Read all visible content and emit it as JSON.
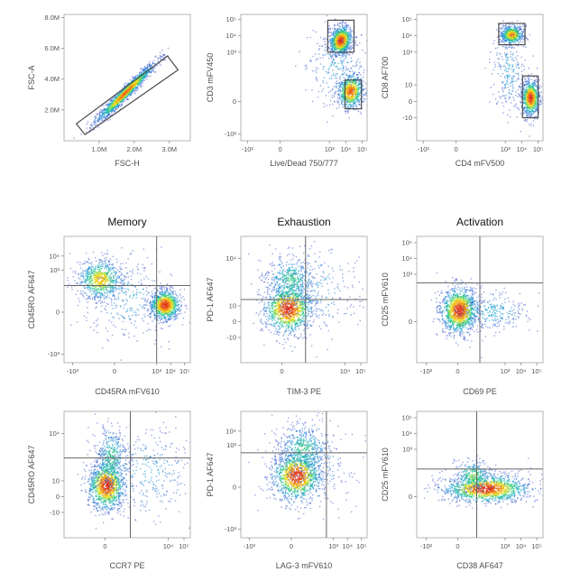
{
  "chart_data": {
    "type": "scatter",
    "subtype": "flow-cytometry-density-plots",
    "column_titles": [
      "Memory",
      "Exhaustion",
      "Activation"
    ],
    "colormap": [
      "#3f49c9",
      "#1fa2d8",
      "#2fd07d",
      "#f2e11b",
      "#f08a1c",
      "#e0281d"
    ],
    "plots": [
      {
        "id": "fsc",
        "scale": "linear",
        "xlabel": "FSC-H",
        "ylabel": "FSC-A",
        "xlim": [
          0,
          3.6
        ],
        "ylim": [
          0,
          8.2
        ],
        "xticks": [
          {
            "v": 1,
            "label": "1.0M"
          },
          {
            "v": 2,
            "label": "2.0M"
          },
          {
            "v": 3,
            "label": "3.0M"
          }
        ],
        "yticks": [
          {
            "v": 2,
            "label": "2.0M"
          },
          {
            "v": 4,
            "label": "4.0M"
          },
          {
            "v": 6,
            "label": "6.0M"
          },
          {
            "v": 8,
            "label": "8.0M"
          }
        ],
        "clusters": [
          {
            "cx": 1.75,
            "cy": 3.1,
            "sx": 0.42,
            "sy": 0.95,
            "rho": 0.97,
            "n": 1400,
            "peak": 0.9
          }
        ],
        "gate_polygon": [
          [
            0.35,
            1.1
          ],
          [
            0.6,
            0.4
          ],
          [
            3.25,
            4.6
          ],
          [
            2.95,
            5.5
          ]
        ]
      },
      {
        "id": "cd3",
        "scale": "log",
        "xlabel": "Live/Dead 750/777",
        "ylabel": "CD3 mFV450",
        "xlim": [
          -2.4,
          5.3
        ],
        "ylim": [
          -2.4,
          5.3
        ],
        "xticks": [
          {
            "v": -2,
            "label": "-10²"
          },
          {
            "v": 0,
            "label": "0"
          },
          {
            "v": 3,
            "label": "10³"
          },
          {
            "v": 4,
            "label": "10⁴"
          },
          {
            "v": 5,
            "label": "10⁵"
          }
        ],
        "yticks": [
          {
            "v": -2,
            "label": "-10²"
          },
          {
            "v": 0,
            "label": "0"
          },
          {
            "v": 3,
            "label": "10³"
          },
          {
            "v": 4,
            "label": "10⁴"
          },
          {
            "v": 5,
            "label": "10⁵"
          }
        ],
        "clusters": [
          {
            "cx": 3.7,
            "cy": 3.7,
            "sx": 0.35,
            "sy": 0.45,
            "rho": 0.2,
            "n": 900,
            "peak": 1.0
          },
          {
            "cx": 4.3,
            "cy": 0.6,
            "sx": 0.4,
            "sy": 0.55,
            "rho": 0.1,
            "n": 650,
            "peak": 0.9
          },
          {
            "cx": 3.5,
            "cy": 2.0,
            "sx": 1.0,
            "sy": 1.2,
            "rho": 0.0,
            "n": 250,
            "peak": 0.2
          }
        ],
        "gate_rects": [
          [
            2.9,
            3.0,
            4.5,
            4.95
          ],
          [
            3.95,
            -0.45,
            4.95,
            1.3
          ]
        ]
      },
      {
        "id": "cd4",
        "scale": "log",
        "xlabel": "CD4 mFV500",
        "ylabel": "CD8 AF700",
        "xlim": [
          -2.4,
          5.3
        ],
        "ylim": [
          -2.4,
          5.3
        ],
        "xticks": [
          {
            "v": -2,
            "label": "-10²"
          },
          {
            "v": 0,
            "label": "0"
          },
          {
            "v": 3,
            "label": "10³"
          },
          {
            "v": 4,
            "label": "10⁴"
          },
          {
            "v": 5,
            "label": "10⁵"
          }
        ],
        "yticks": [
          {
            "v": -1,
            "label": "-10"
          },
          {
            "v": 0,
            "label": "0"
          },
          {
            "v": 1,
            "label": "10"
          },
          {
            "v": 3,
            "label": "10³"
          },
          {
            "v": 4,
            "label": "10⁴"
          },
          {
            "v": 5,
            "label": "10⁵"
          }
        ],
        "clusters": [
          {
            "cx": 3.4,
            "cy": 4.05,
            "sx": 0.35,
            "sy": 0.3,
            "rho": 0.0,
            "n": 550,
            "peak": 0.8
          },
          {
            "cx": 4.55,
            "cy": 0.2,
            "sx": 0.28,
            "sy": 0.55,
            "rho": 0.0,
            "n": 700,
            "peak": 1.0
          },
          {
            "cx": 3.2,
            "cy": 1.8,
            "sx": 0.5,
            "sy": 1.3,
            "rho": 0.0,
            "n": 250,
            "peak": 0.2
          }
        ],
        "gate_rects": [
          [
            2.6,
            3.45,
            4.2,
            4.75
          ],
          [
            4.05,
            -1.0,
            5.0,
            1.55
          ]
        ]
      },
      {
        "id": "mem1",
        "scale": "log",
        "xlabel": "CD45RA mFV610",
        "ylabel": "CD45RO AF647",
        "title": "Memory",
        "xlim": [
          -3.6,
          5.4
        ],
        "ylim": [
          -3.6,
          5.4
        ],
        "xticks": [
          {
            "v": -3,
            "label": "-10³"
          },
          {
            "v": 0,
            "label": "0"
          },
          {
            "v": 3,
            "label": "10³"
          },
          {
            "v": 4,
            "label": "10⁴"
          },
          {
            "v": 5,
            "label": "10⁵"
          }
        ],
        "yticks": [
          {
            "v": -3,
            "label": "-10³"
          },
          {
            "v": 0,
            "label": "0"
          },
          {
            "v": 3,
            "label": "10³"
          },
          {
            "v": 4,
            "label": "10⁴"
          }
        ],
        "clusters": [
          {
            "cx": -1.0,
            "cy": 2.3,
            "sx": 0.8,
            "sy": 0.75,
            "rho": 0.0,
            "n": 650,
            "peak": 0.7
          },
          {
            "cx": 3.6,
            "cy": 0.5,
            "sx": 0.55,
            "sy": 0.55,
            "rho": 0.0,
            "n": 850,
            "peak": 1.0
          },
          {
            "cx": 1.0,
            "cy": 1.0,
            "sx": 1.6,
            "sy": 1.5,
            "rho": 0.0,
            "n": 300,
            "peak": 0.2
          }
        ],
        "quadrant": {
          "x": 3.0,
          "y": 1.9
        }
      },
      {
        "id": "exh1",
        "scale": "log",
        "xlabel": "TIM-3 PE",
        "ylabel": "PD-1 AF647",
        "title": "Exhaustion",
        "xlim": [
          -2.6,
          5.4
        ],
        "ylim": [
          -2.6,
          5.4
        ],
        "xticks": [
          {
            "v": 0,
            "label": "0"
          },
          {
            "v": 4,
            "label": "10⁴"
          },
          {
            "v": 5,
            "label": "10⁵"
          }
        ],
        "yticks": [
          {
            "v": -1,
            "label": "-10"
          },
          {
            "v": 0,
            "label": "0"
          },
          {
            "v": 1,
            "label": "10"
          },
          {
            "v": 4,
            "label": "10⁴"
          }
        ],
        "clusters": [
          {
            "cx": 0.4,
            "cy": 0.8,
            "sx": 0.8,
            "sy": 0.8,
            "rho": 0.0,
            "n": 1000,
            "peak": 1.0
          },
          {
            "cx": 0.6,
            "cy": 2.6,
            "sx": 0.8,
            "sy": 0.8,
            "rho": 0.0,
            "n": 450,
            "peak": 0.4
          },
          {
            "cx": 2.0,
            "cy": 2.0,
            "sx": 1.5,
            "sy": 1.5,
            "rho": 0.0,
            "n": 250,
            "peak": 0.2
          }
        ],
        "quadrant": {
          "x": 1.5,
          "y": 1.4
        }
      },
      {
        "id": "act1",
        "scale": "log",
        "xlabel": "CD69 PE",
        "ylabel": "CD25 mFV610",
        "title": "Activation",
        "xlim": [
          -2.6,
          5.4
        ],
        "ylim": [
          -2.6,
          5.4
        ],
        "xticks": [
          {
            "v": -2,
            "label": "-10²"
          },
          {
            "v": 0,
            "label": "0"
          },
          {
            "v": 3,
            "label": "10³"
          },
          {
            "v": 4,
            "label": "10⁴"
          },
          {
            "v": 5,
            "label": "10⁵"
          }
        ],
        "yticks": [
          {
            "v": 0,
            "label": "0"
          },
          {
            "v": 3,
            "label": "10³"
          },
          {
            "v": 4,
            "label": "10⁴"
          },
          {
            "v": 5,
            "label": "10⁵"
          }
        ],
        "clusters": [
          {
            "cx": 0.1,
            "cy": 0.7,
            "sx": 0.6,
            "sy": 0.75,
            "rho": 0.0,
            "n": 1100,
            "peak": 1.0
          },
          {
            "cx": 2.2,
            "cy": 0.6,
            "sx": 1.2,
            "sy": 0.6,
            "rho": 0.0,
            "n": 300,
            "peak": 0.25
          }
        ],
        "quadrant": {
          "x": 1.4,
          "y": 2.45
        }
      },
      {
        "id": "mem2",
        "scale": "log",
        "xlabel": "CCR7 PE",
        "ylabel": "CD45RO AF647",
        "xlim": [
          -2.6,
          5.4
        ],
        "ylim": [
          -2.6,
          5.4
        ],
        "xticks": [
          {
            "v": 0,
            "label": "0"
          },
          {
            "v": 4,
            "label": "10⁴"
          },
          {
            "v": 5,
            "label": "10⁵"
          }
        ],
        "yticks": [
          {
            "v": -1,
            "label": "-10"
          },
          {
            "v": 0,
            "label": "0"
          },
          {
            "v": 1,
            "label": "10"
          },
          {
            "v": 4,
            "label": "10⁴"
          }
        ],
        "clusters": [
          {
            "cx": 0.1,
            "cy": 0.7,
            "sx": 0.6,
            "sy": 0.8,
            "rho": 0.0,
            "n": 1000,
            "peak": 1.0
          },
          {
            "cx": 0.4,
            "cy": 2.4,
            "sx": 0.5,
            "sy": 1.0,
            "rho": 0.0,
            "n": 400,
            "peak": 0.4
          },
          {
            "cx": 2.5,
            "cy": 1.6,
            "sx": 1.7,
            "sy": 1.4,
            "rho": 0.0,
            "n": 350,
            "peak": 0.2
          }
        ],
        "quadrant": {
          "x": 1.6,
          "y": 2.45
        }
      },
      {
        "id": "exh2",
        "scale": "log",
        "xlabel": "LAG-3 mFV610",
        "ylabel": "PD-1 AF647",
        "xlim": [
          -3.6,
          5.4
        ],
        "ylim": [
          -3.6,
          5.4
        ],
        "xticks": [
          {
            "v": -3,
            "label": "-10³"
          },
          {
            "v": 0,
            "label": "0"
          },
          {
            "v": 3,
            "label": "10³"
          },
          {
            "v": 4,
            "label": "10⁴"
          },
          {
            "v": 5,
            "label": "10⁵"
          }
        ],
        "yticks": [
          {
            "v": -3,
            "label": "-10³"
          },
          {
            "v": 0,
            "label": "0"
          },
          {
            "v": 3,
            "label": "10³"
          },
          {
            "v": 4,
            "label": "10⁴"
          }
        ],
        "clusters": [
          {
            "cx": 0.4,
            "cy": 0.8,
            "sx": 0.9,
            "sy": 0.9,
            "rho": 0.0,
            "n": 1000,
            "peak": 1.0
          },
          {
            "cx": 0.9,
            "cy": 2.7,
            "sx": 0.9,
            "sy": 0.9,
            "rho": 0.0,
            "n": 450,
            "peak": 0.4
          },
          {
            "cx": 1.5,
            "cy": 1.5,
            "sx": 1.6,
            "sy": 1.6,
            "rho": 0.0,
            "n": 250,
            "peak": 0.2
          }
        ],
        "quadrant": {
          "x": 2.5,
          "y": 2.45
        }
      },
      {
        "id": "act2",
        "scale": "log",
        "xlabel": "CD38 AF647",
        "ylabel": "CD25 mFV610",
        "xlim": [
          -2.6,
          5.4
        ],
        "ylim": [
          -2.6,
          5.4
        ],
        "xticks": [
          {
            "v": -2,
            "label": "-10²"
          },
          {
            "v": 0,
            "label": "0"
          },
          {
            "v": 3,
            "label": "10³"
          },
          {
            "v": 4,
            "label": "10⁴"
          },
          {
            "v": 5,
            "label": "10⁵"
          }
        ],
        "yticks": [
          {
            "v": 0,
            "label": "0"
          },
          {
            "v": 3,
            "label": "10³"
          },
          {
            "v": 4,
            "label": "10⁴"
          },
          {
            "v": 5,
            "label": "10⁵"
          }
        ],
        "clusters": [
          {
            "cx": 1.8,
            "cy": 0.5,
            "sx": 1.4,
            "sy": 0.45,
            "rho": 0.0,
            "n": 1200,
            "peak": 1.0
          },
          {
            "cx": 1.0,
            "cy": 1.3,
            "sx": 0.6,
            "sy": 0.5,
            "rho": 0.0,
            "n": 300,
            "peak": 0.5
          }
        ],
        "quadrant": {
          "x": 1.2,
          "y": 1.75
        }
      }
    ]
  }
}
